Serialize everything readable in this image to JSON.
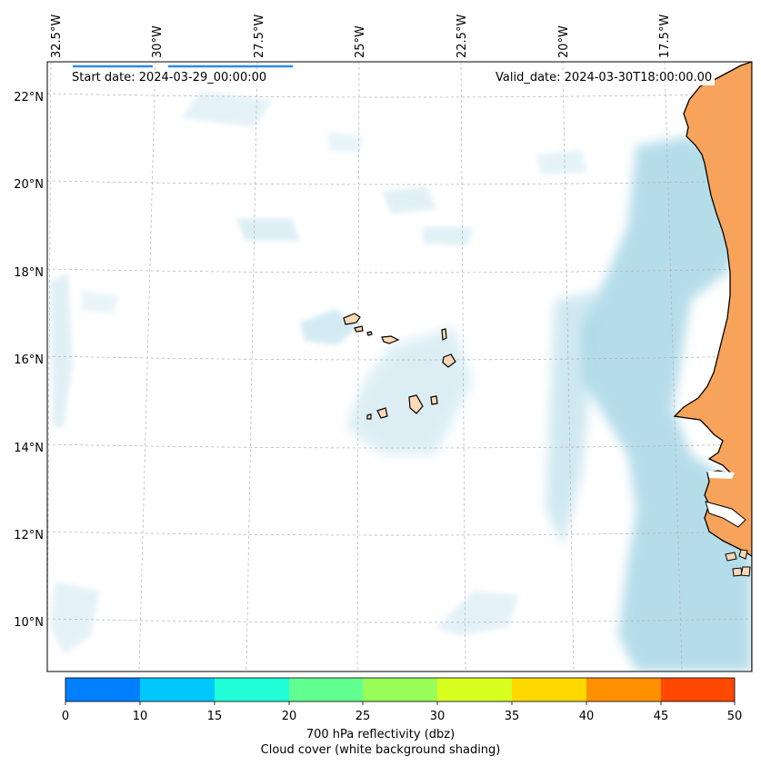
{
  "start_label": "Start date: 2024-03-29_00:00:00",
  "valid_label": "Valid_date: 2024-03-30T18:00:00.00",
  "lon_labels": [
    "32.5°W",
    "30°W",
    "27.5°W",
    "25°W",
    "22.5°W",
    "20°W",
    "17.5°W"
  ],
  "lat_labels": [
    "22°N",
    "20°N",
    "18°N",
    "16°N",
    "14°N",
    "12°N",
    "10°N"
  ],
  "colorbar": {
    "ticks": [
      "0",
      "10",
      "15",
      "20",
      "25",
      "30",
      "35",
      "40",
      "45",
      "50"
    ],
    "colors": [
      "#0080ff",
      "#00c8ff",
      "#20ffd8",
      "#60ff90",
      "#98ff58",
      "#d8ff20",
      "#ffd800",
      "#ff9000",
      "#ff4800"
    ],
    "label_line1": "700 hPa reflectivity (dbz)",
    "label_line2": "Cloud cover (white background shading)"
  },
  "colors": {
    "land": "#f7a35c",
    "land_light": "#fbd9b7",
    "cloud": "#a9d7e6",
    "ocean": "#ffffff",
    "gridline": "#b0b0b0"
  }
}
